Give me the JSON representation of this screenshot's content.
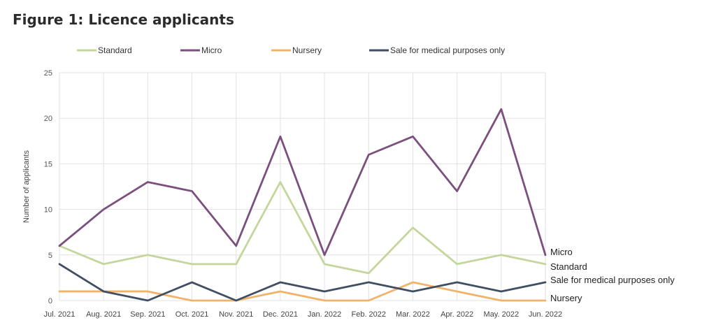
{
  "page": {
    "title": "Figure 1: Licence applicants"
  },
  "chart_data": {
    "type": "line",
    "title": "Figure 1: Licence applicants",
    "xlabel": "",
    "ylabel": "Number  of applicants",
    "ylim": [
      0,
      25
    ],
    "yticks": [
      0,
      5,
      10,
      15,
      20,
      25
    ],
    "grid": true,
    "legend_position": "top",
    "categories": [
      "Jul. 2021",
      "Aug. 2021",
      "Sep. 2021",
      "Oct. 2021",
      "Nov. 2021",
      "Dec. 2021",
      "Jan. 2022",
      "Feb. 2022",
      "Mar. 2022",
      "Apr. 2022",
      "May. 2022",
      "Jun. 2022"
    ],
    "series": [
      {
        "name": "Standard",
        "color": "#c3d69b",
        "end_label": "Standard",
        "values": [
          6,
          4,
          5,
          4,
          4,
          13,
          4,
          3,
          8,
          4,
          5,
          4
        ]
      },
      {
        "name": "Micro",
        "color": "#7b4f7e",
        "end_label": "Micro",
        "values": [
          6,
          10,
          13,
          12,
          6,
          18,
          5,
          16,
          18,
          12,
          21,
          5
        ]
      },
      {
        "name": "Nursery",
        "color": "#f0b36a",
        "end_label": "Nursery",
        "values": [
          1,
          1,
          1,
          0,
          0,
          1,
          0,
          0,
          2,
          1,
          0,
          0
        ]
      },
      {
        "name": "Sale for medical purposes only",
        "color": "#3f4e63",
        "end_label": "Sale for medical purposes only",
        "values": [
          4,
          1,
          0,
          2,
          0,
          2,
          1,
          2,
          1,
          2,
          1,
          2
        ]
      }
    ]
  }
}
